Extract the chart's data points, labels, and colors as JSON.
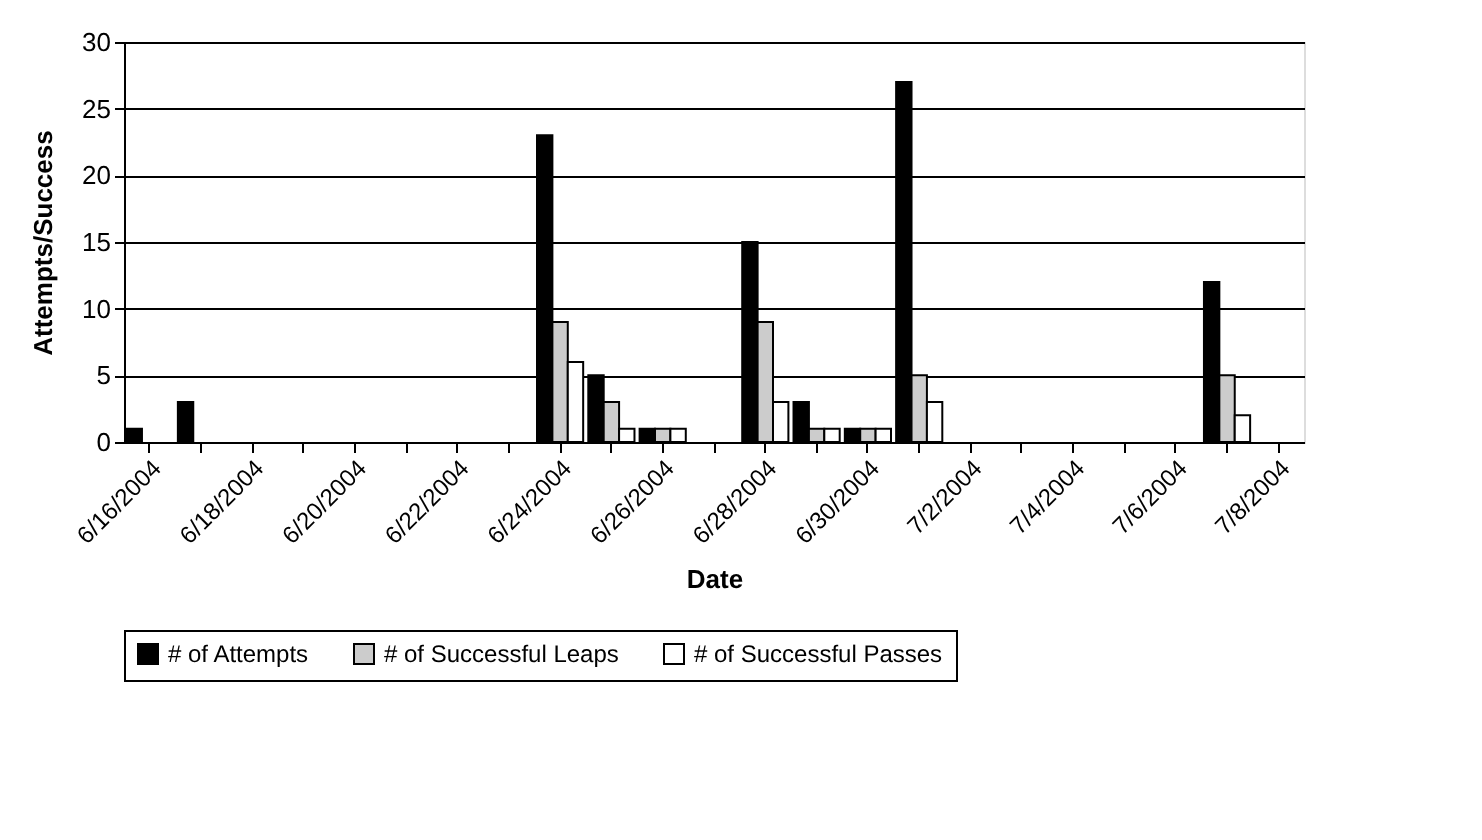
{
  "chart_data": {
    "type": "bar",
    "xlabel": "Date",
    "ylabel": "Attempts/Success",
    "categories": [
      "6/16/2004",
      null,
      "6/18/2004",
      null,
      "6/20/2004",
      null,
      "6/22/2004",
      null,
      "6/24/2004",
      null,
      "6/26/2004",
      null,
      "6/28/2004",
      null,
      "6/30/2004",
      null,
      "7/2/2004",
      null,
      "7/4/2004",
      null,
      "7/6/2004",
      null,
      "7/8/2004"
    ],
    "series": [
      {
        "name": "# of Attempts",
        "color": "#000000",
        "values": [
          1,
          3,
          null,
          null,
          null,
          null,
          null,
          null,
          23,
          5,
          1,
          null,
          15,
          3,
          1,
          27,
          null,
          null,
          null,
          null,
          null,
          12,
          null
        ]
      },
      {
        "name": "# of Successful Leaps",
        "color": "#cccccc",
        "values": [
          null,
          null,
          null,
          null,
          null,
          null,
          null,
          null,
          9,
          3,
          1,
          null,
          9,
          1,
          1,
          5,
          null,
          null,
          null,
          null,
          null,
          5,
          null
        ]
      },
      {
        "name": "# of Successful Passes",
        "color": "#ffffff",
        "values": [
          null,
          null,
          null,
          null,
          null,
          null,
          null,
          null,
          6,
          1,
          1,
          null,
          3,
          1,
          1,
          3,
          null,
          null,
          null,
          null,
          null,
          2,
          null
        ]
      }
    ],
    "ylim": [
      0,
      30
    ],
    "yticks": [
      0,
      5,
      10,
      15,
      20,
      25,
      30
    ],
    "grid": "y",
    "legend": "bottom"
  }
}
